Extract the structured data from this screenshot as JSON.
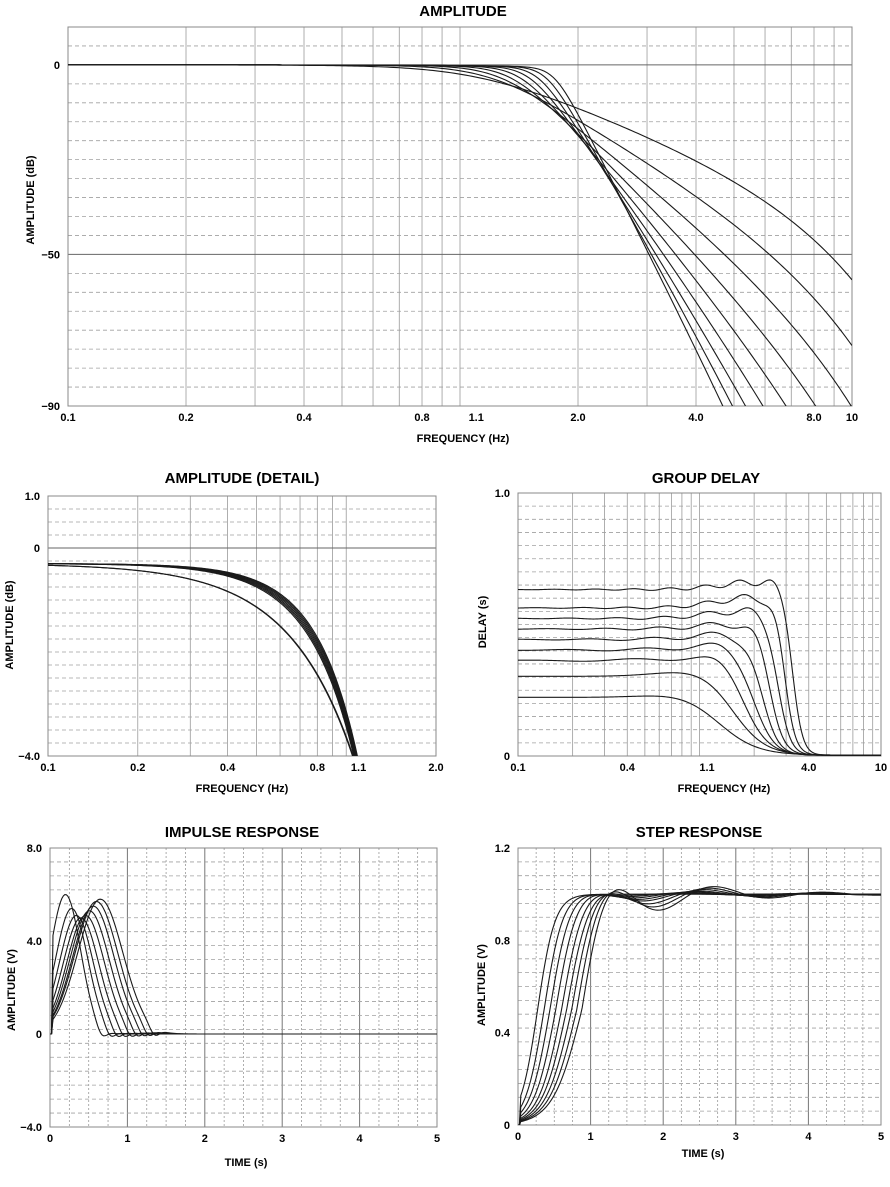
{
  "chart_data": [
    {
      "id": "amp",
      "type": "line",
      "title": "AMPLITUDE",
      "xlabel": "FREQUENCY (Hz)",
      "ylabel": "AMPLITUDE (dB)",
      "xscale": "log",
      "xlim": [
        0.1,
        10
      ],
      "ylim": [
        -90,
        10
      ],
      "xticks": [
        "0.1",
        "0.2",
        "0.4",
        "0.8",
        "1.1",
        "2.0",
        "4.0",
        "8.0",
        "10"
      ],
      "yticks": [
        "0",
        "−50",
        "−90"
      ],
      "grid": true,
      "series": [
        {
          "kind": "lowpass",
          "order": 2
        },
        {
          "kind": "lowpass",
          "order": 3
        },
        {
          "kind": "lowpass",
          "order": 4
        },
        {
          "kind": "lowpass",
          "order": 5
        },
        {
          "kind": "lowpass",
          "order": 6
        },
        {
          "kind": "lowpass",
          "order": 7
        },
        {
          "kind": "lowpass",
          "order": 8
        },
        {
          "kind": "lowpass",
          "order": 9
        },
        {
          "kind": "lowpass",
          "order": 10
        }
      ]
    },
    {
      "id": "detail",
      "type": "line",
      "title": "AMPLITUDE (DETAIL)",
      "xlabel": "FREQUENCY (Hz)",
      "ylabel": "AMPLITUDE (dB)",
      "xscale": "log",
      "xlim": [
        0.1,
        2.0
      ],
      "ylim": [
        -4.0,
        1.0
      ],
      "xticks": [
        "0.1",
        "0.2",
        "0.4",
        "0.8",
        "1.1",
        "2.0"
      ],
      "yticks": [
        "1.0",
        "0",
        "−4.0"
      ],
      "grid": true,
      "series": [
        {
          "kind": "passband",
          "order": 2
        },
        {
          "kind": "passband",
          "order": 3
        },
        {
          "kind": "passband",
          "order": 4
        },
        {
          "kind": "passband",
          "order": 5
        },
        {
          "kind": "passband",
          "order": 6
        },
        {
          "kind": "passband",
          "order": 7
        },
        {
          "kind": "passband",
          "order": 8
        },
        {
          "kind": "passband",
          "order": 9
        },
        {
          "kind": "passband",
          "order": 10
        }
      ]
    },
    {
      "id": "delay",
      "type": "line",
      "title": "GROUP DELAY",
      "xlabel": "FREQUENCY (Hz)",
      "ylabel": "DELAY (s)",
      "xscale": "log",
      "xlim": [
        0.1,
        10
      ],
      "ylim": [
        0,
        1.0
      ],
      "xticks": [
        "0.1",
        "0.4",
        "1.1",
        "4.0",
        "10"
      ],
      "yticks": [
        "1.0",
        "0"
      ],
      "grid": true,
      "series": [
        {
          "kind": "delay",
          "order": 2,
          "base": 0.22,
          "peak": 0.24,
          "fc": 1.3
        },
        {
          "kind": "delay",
          "order": 3,
          "base": 0.3,
          "peak": 0.33,
          "fc": 1.55
        },
        {
          "kind": "delay",
          "order": 4,
          "base": 0.36,
          "peak": 0.38,
          "fc": 1.8
        },
        {
          "kind": "delay",
          "order": 5,
          "base": 0.4,
          "peak": 0.42,
          "fc": 2.0
        },
        {
          "kind": "delay",
          "order": 6,
          "base": 0.44,
          "peak": 0.46,
          "fc": 2.2
        },
        {
          "kind": "delay",
          "order": 7,
          "base": 0.48,
          "peak": 0.5,
          "fc": 2.45
        },
        {
          "kind": "delay",
          "order": 8,
          "base": 0.52,
          "peak": 0.55,
          "fc": 2.7
        },
        {
          "kind": "delay",
          "order": 9,
          "base": 0.56,
          "peak": 0.6,
          "fc": 2.95
        },
        {
          "kind": "delay",
          "order": 10,
          "base": 0.63,
          "peak": 0.66,
          "fc": 3.25
        }
      ]
    },
    {
      "id": "impulse",
      "type": "line",
      "title": "IMPULSE RESPONSE",
      "xlabel": "TIME (s)",
      "ylabel": "AMPLITUDE (V)",
      "xlim": [
        0,
        5
      ],
      "ylim": [
        -4.0,
        8.0
      ],
      "xticks": [
        "0",
        "1",
        "2",
        "3",
        "4",
        "5"
      ],
      "yticks": [
        "8.0",
        "4.0",
        "0",
        "−4.0"
      ],
      "grid": true,
      "series": [
        {
          "kind": "pulse",
          "order": 2,
          "peak_t": 0.2,
          "peak_v": 6.0
        },
        {
          "kind": "pulse",
          "order": 3,
          "peak_t": 0.28,
          "peak_v": 5.4
        },
        {
          "kind": "pulse",
          "order": 4,
          "peak_t": 0.34,
          "peak_v": 5.1
        },
        {
          "kind": "pulse",
          "order": 5,
          "peak_t": 0.4,
          "peak_v": 5.0
        },
        {
          "kind": "pulse",
          "order": 6,
          "peak_t": 0.46,
          "peak_v": 5.1
        },
        {
          "kind": "pulse",
          "order": 7,
          "peak_t": 0.51,
          "peak_v": 5.3
        },
        {
          "kind": "pulse",
          "order": 8,
          "peak_t": 0.56,
          "peak_v": 5.5
        },
        {
          "kind": "pulse",
          "order": 9,
          "peak_t": 0.6,
          "peak_v": 5.7
        },
        {
          "kind": "pulse",
          "order": 10,
          "peak_t": 0.65,
          "peak_v": 5.8
        }
      ]
    },
    {
      "id": "step",
      "type": "line",
      "title": "STEP RESPONSE",
      "xlabel": "TIME (s)",
      "ylabel": "AMPLITUDE (V)",
      "xlim": [
        0,
        5
      ],
      "ylim": [
        0,
        1.2
      ],
      "xticks": [
        "0",
        "1",
        "2",
        "3",
        "4",
        "5"
      ],
      "yticks": [
        "1.2",
        "0.8",
        "0.4",
        "0"
      ],
      "grid": true,
      "series": [
        {
          "kind": "step",
          "order": 2,
          "t50": 0.27,
          "overshoot": 0.0
        },
        {
          "kind": "step",
          "order": 3,
          "t50": 0.36,
          "overshoot": 0.01
        },
        {
          "kind": "step",
          "order": 4,
          "t50": 0.44,
          "overshoot": 0.02
        },
        {
          "kind": "step",
          "order": 5,
          "t50": 0.52,
          "overshoot": 0.03
        },
        {
          "kind": "step",
          "order": 6,
          "t50": 0.6,
          "overshoot": 0.04
        },
        {
          "kind": "step",
          "order": 7,
          "t50": 0.67,
          "overshoot": 0.05
        },
        {
          "kind": "step",
          "order": 8,
          "t50": 0.74,
          "overshoot": 0.07
        },
        {
          "kind": "step",
          "order": 9,
          "t50": 0.81,
          "overshoot": 0.09
        },
        {
          "kind": "step",
          "order": 10,
          "t50": 0.88,
          "overshoot": 0.11
        }
      ]
    }
  ]
}
